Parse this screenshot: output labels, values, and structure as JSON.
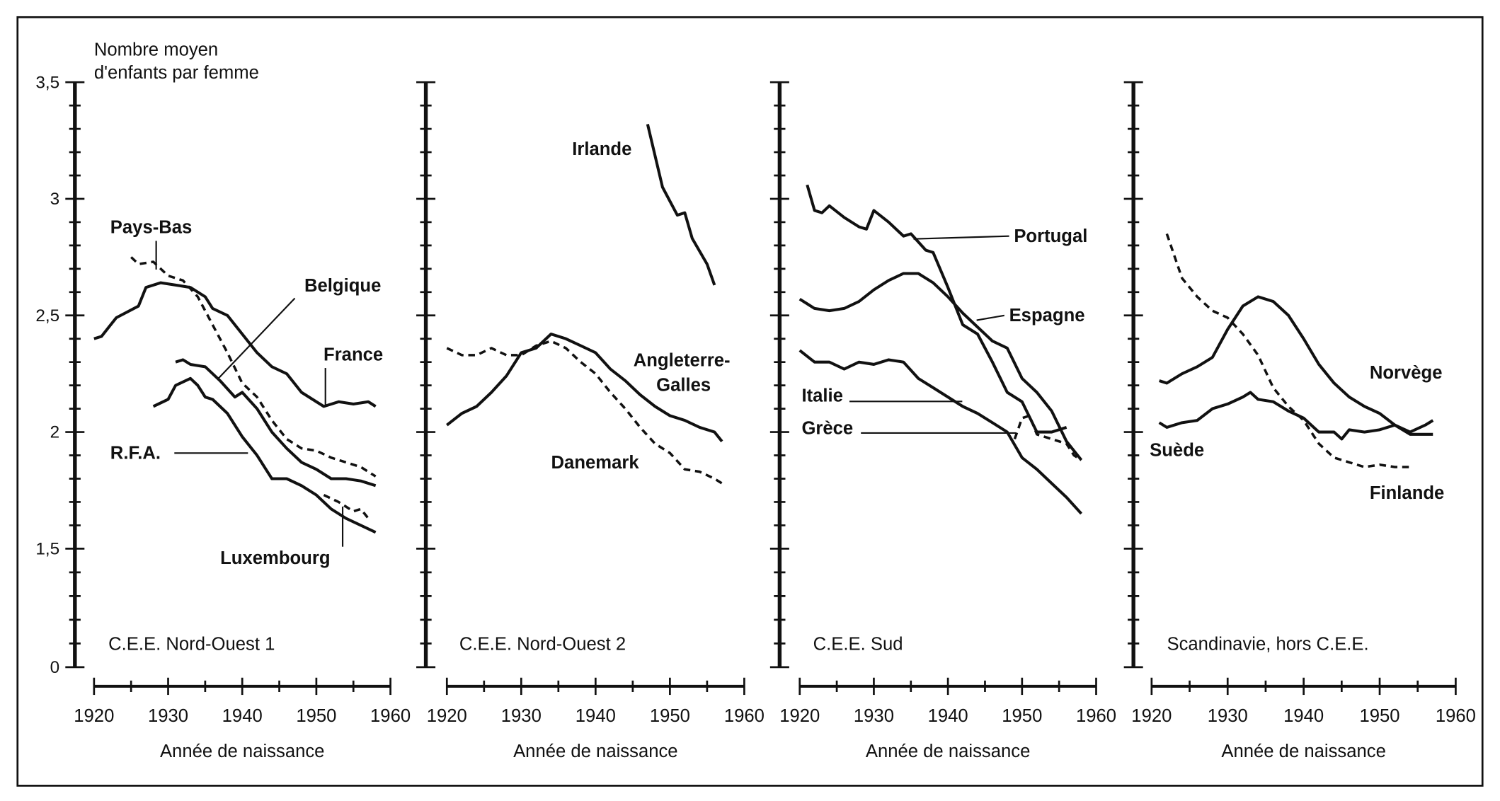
{
  "chart_data": [
    {
      "type": "line",
      "title": "C.E.E. Nord-Ouest 1",
      "ylabel": "Nombre moyen d'enfants par femme",
      "xlabel": "Année de naissance",
      "xlim": [
        1920,
        1960
      ],
      "ylim": [
        0,
        3.5
      ],
      "y_axis_break": "between 0 and 1,5",
      "x_ticks": [
        "1920",
        "1930",
        "1940",
        "1950",
        "1960"
      ],
      "y_ticks": [
        "0",
        "1,5",
        "2",
        "2,5",
        "3",
        "3,5"
      ],
      "series": [
        {
          "name": "France",
          "style": "solid",
          "x": [
            1920,
            1921,
            1922,
            1923,
            1926,
            1927,
            1929,
            1933,
            1935,
            1936,
            1938,
            1940,
            1942,
            1944,
            1946,
            1948,
            1950,
            1951,
            1953,
            1955,
            1957,
            1958
          ],
          "y": [
            2.4,
            2.41,
            2.45,
            2.49,
            2.54,
            2.62,
            2.64,
            2.62,
            2.58,
            2.53,
            2.5,
            2.42,
            2.34,
            2.28,
            2.25,
            2.17,
            2.13,
            2.11,
            2.13,
            2.12,
            2.13,
            2.11
          ]
        },
        {
          "name": "Pays-Bas",
          "style": "dashed",
          "x": [
            1925,
            1926,
            1928,
            1930,
            1932,
            1934,
            1936,
            1938,
            1940,
            1942,
            1944,
            1946,
            1948,
            1950,
            1952,
            1954,
            1956,
            1958
          ],
          "y": [
            2.75,
            2.72,
            2.73,
            2.67,
            2.65,
            2.58,
            2.46,
            2.34,
            2.21,
            2.15,
            2.05,
            1.97,
            1.93,
            1.92,
            1.89,
            1.87,
            1.85,
            1.81
          ]
        },
        {
          "name": "Belgique",
          "style": "solid",
          "x": [
            1931,
            1932,
            1933,
            1935,
            1937,
            1939,
            1940,
            1942,
            1944,
            1946,
            1948,
            1950,
            1952,
            1954,
            1956,
            1958
          ],
          "y": [
            2.3,
            2.31,
            2.29,
            2.28,
            2.22,
            2.15,
            2.17,
            2.1,
            2.0,
            1.93,
            1.87,
            1.84,
            1.8,
            1.8,
            1.79,
            1.77
          ]
        },
        {
          "name": "R.F.A.",
          "style": "solid",
          "x": [
            1928,
            1930,
            1931,
            1933,
            1934,
            1935,
            1936,
            1938,
            1940,
            1942,
            1944,
            1946,
            1948,
            1950,
            1952,
            1954,
            1956,
            1958
          ],
          "y": [
            2.11,
            2.14,
            2.2,
            2.23,
            2.2,
            2.15,
            2.14,
            2.08,
            1.98,
            1.9,
            1.8,
            1.8,
            1.77,
            1.73,
            1.67,
            1.63,
            1.6,
            1.57
          ]
        },
        {
          "name": "Luxembourg",
          "style": "dashed",
          "x": [
            1951,
            1953,
            1955,
            1956,
            1957
          ],
          "y": [
            1.73,
            1.7,
            1.66,
            1.67,
            1.63
          ]
        }
      ]
    },
    {
      "type": "line",
      "title": "C.E.E. Nord-Ouest 2",
      "xlabel": "Année de naissance",
      "xlim": [
        1920,
        1960
      ],
      "ylim": [
        0,
        3.5
      ],
      "x_ticks": [
        "1920",
        "1930",
        "1940",
        "1950",
        "1960"
      ],
      "series": [
        {
          "name": "Irlande",
          "style": "solid",
          "x": [
            1947,
            1949,
            1951,
            1952,
            1953,
            1955,
            1956
          ],
          "y": [
            3.32,
            3.05,
            2.93,
            2.94,
            2.83,
            2.72,
            2.63
          ]
        },
        {
          "name": "Angleterre-Galles",
          "style": "solid",
          "x": [
            1920,
            1922,
            1924,
            1926,
            1928,
            1930,
            1932,
            1934,
            1936,
            1938,
            1940,
            1942,
            1944,
            1946,
            1948,
            1950,
            1952,
            1954,
            1956,
            1957
          ],
          "y": [
            2.03,
            2.08,
            2.11,
            2.17,
            2.24,
            2.34,
            2.36,
            2.42,
            2.4,
            2.37,
            2.34,
            2.27,
            2.22,
            2.16,
            2.11,
            2.07,
            2.05,
            2.02,
            2.0,
            1.96
          ]
        },
        {
          "name": "Danemark",
          "style": "dashed",
          "x": [
            1920,
            1922,
            1924,
            1926,
            1928,
            1930,
            1932,
            1934,
            1936,
            1938,
            1940,
            1942,
            1944,
            1946,
            1948,
            1950,
            1952,
            1954,
            1956,
            1957
          ],
          "y": [
            2.36,
            2.33,
            2.33,
            2.36,
            2.33,
            2.33,
            2.37,
            2.39,
            2.36,
            2.3,
            2.25,
            2.17,
            2.1,
            2.02,
            1.95,
            1.91,
            1.84,
            1.83,
            1.8,
            1.78
          ]
        }
      ]
    },
    {
      "type": "line",
      "title": "C.E.E. Sud",
      "xlabel": "Année de naissance",
      "xlim": [
        1920,
        1960
      ],
      "ylim": [
        0,
        3.5
      ],
      "x_ticks": [
        "1920",
        "1930",
        "1940",
        "1950",
        "1960"
      ],
      "series": [
        {
          "name": "Portugal",
          "style": "solid",
          "x": [
            1921,
            1922,
            1923,
            1924,
            1926,
            1928,
            1929,
            1930,
            1932,
            1934,
            1935,
            1937,
            1938,
            1940,
            1942,
            1944,
            1946,
            1948,
            1950,
            1952,
            1954,
            1956
          ],
          "y": [
            3.06,
            2.95,
            2.94,
            2.97,
            2.92,
            2.88,
            2.87,
            2.95,
            2.9,
            2.84,
            2.85,
            2.78,
            2.77,
            2.62,
            2.46,
            2.42,
            2.3,
            2.17,
            2.13,
            2.0,
            2.0,
            2.02
          ]
        },
        {
          "name": "Espagne",
          "style": "solid",
          "x": [
            1920,
            1922,
            1924,
            1926,
            1928,
            1930,
            1932,
            1934,
            1936,
            1938,
            1940,
            1942,
            1944,
            1946,
            1948,
            1950,
            1952,
            1954,
            1956,
            1958
          ],
          "y": [
            2.57,
            2.53,
            2.52,
            2.53,
            2.56,
            2.61,
            2.65,
            2.68,
            2.68,
            2.64,
            2.58,
            2.51,
            2.45,
            2.39,
            2.36,
            2.23,
            2.17,
            2.09,
            1.96,
            1.88
          ]
        },
        {
          "name": "Italie",
          "style": "solid",
          "x": [
            1920,
            1922,
            1924,
            1926,
            1928,
            1930,
            1932,
            1934,
            1936,
            1938,
            1940,
            1942,
            1944,
            1946,
            1948,
            1950,
            1952,
            1954,
            1956,
            1958
          ],
          "y": [
            2.35,
            2.3,
            2.3,
            2.27,
            2.3,
            2.29,
            2.31,
            2.3,
            2.23,
            2.19,
            2.15,
            2.11,
            2.08,
            2.04,
            2.0,
            1.89,
            1.84,
            1.78,
            1.72,
            1.65
          ]
        },
        {
          "name": "Grèce",
          "style": "dashed",
          "x": [
            1949,
            1950,
            1951,
            1952,
            1954,
            1956,
            1957,
            1958
          ],
          "y": [
            1.97,
            2.06,
            2.07,
            1.99,
            1.97,
            1.95,
            1.9,
            1.88
          ]
        }
      ]
    },
    {
      "type": "line",
      "title": "Scandinavie, hors C.E.E.",
      "xlabel": "Année de naissance",
      "xlim": [
        1920,
        1960
      ],
      "ylim": [
        0,
        3.5
      ],
      "x_ticks": [
        "1920",
        "1930",
        "1940",
        "1950",
        "1960"
      ],
      "series": [
        {
          "name": "Norvège",
          "style": "solid",
          "x": [
            1921,
            1922,
            1924,
            1926,
            1928,
            1930,
            1932,
            1934,
            1936,
            1938,
            1940,
            1942,
            1944,
            1946,
            1948,
            1950,
            1952,
            1954,
            1956,
            1957
          ],
          "y": [
            2.22,
            2.21,
            2.25,
            2.28,
            2.32,
            2.44,
            2.54,
            2.58,
            2.56,
            2.5,
            2.4,
            2.29,
            2.21,
            2.15,
            2.11,
            2.08,
            2.03,
            1.99,
            1.99,
            1.99
          ]
        },
        {
          "name": "Suède",
          "style": "solid",
          "x": [
            1921,
            1922,
            1924,
            1926,
            1928,
            1930,
            1932,
            1933,
            1934,
            1936,
            1938,
            1940,
            1942,
            1944,
            1945,
            1946,
            1948,
            1950,
            1952,
            1954,
            1956,
            1957
          ],
          "y": [
            2.04,
            2.02,
            2.04,
            2.05,
            2.1,
            2.12,
            2.15,
            2.17,
            2.14,
            2.13,
            2.09,
            2.06,
            2.0,
            2.0,
            1.97,
            2.01,
            2.0,
            2.01,
            2.03,
            2.0,
            2.03,
            2.05
          ]
        },
        {
          "name": "Finlande",
          "style": "dashed",
          "x": [
            1922,
            1924,
            1926,
            1928,
            1930,
            1932,
            1934,
            1936,
            1938,
            1940,
            1942,
            1944,
            1946,
            1948,
            1950,
            1952,
            1954
          ],
          "y": [
            2.85,
            2.66,
            2.58,
            2.52,
            2.49,
            2.42,
            2.33,
            2.19,
            2.11,
            2.05,
            1.95,
            1.89,
            1.87,
            1.85,
            1.86,
            1.85,
            1.85
          ]
        }
      ]
    }
  ],
  "colors": {
    "ink": "#111111",
    "paper": "#ffffff"
  }
}
